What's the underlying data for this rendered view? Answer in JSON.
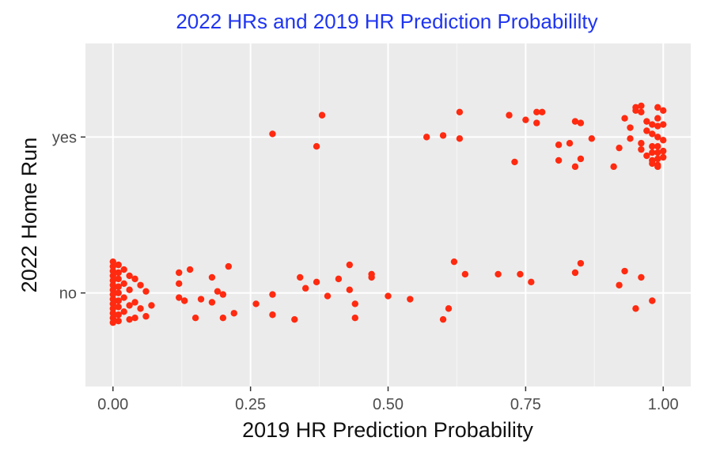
{
  "chart_data": {
    "type": "scatter",
    "title": "2022 HRs and 2019 HR Prediction Probabililty",
    "xlabel": "2019 HR Prediction Probability",
    "ylabel": "2022 Home Run",
    "xlim": [
      -0.05,
      1.05
    ],
    "x_ticks": [
      "0.00",
      "0.25",
      "0.50",
      "0.75",
      "1.00"
    ],
    "y_categories": [
      "no",
      "yes"
    ],
    "jitter": "vertical",
    "grid": true,
    "point_color": "#ff2a10",
    "panel_color": "#ebebeb",
    "title_color": "#1f35f0",
    "series": [
      {
        "category": "yes",
        "points": [
          [
            0.29,
            0.02
          ],
          [
            0.37,
            -0.06
          ],
          [
            0.38,
            0.14
          ],
          [
            0.57,
            0.0
          ],
          [
            0.6,
            0.01
          ],
          [
            0.63,
            0.16
          ],
          [
            0.63,
            -0.01
          ],
          [
            0.72,
            0.14
          ],
          [
            0.73,
            -0.16
          ],
          [
            0.75,
            0.11
          ],
          [
            0.77,
            0.16
          ],
          [
            0.77,
            0.09
          ],
          [
            0.78,
            0.16
          ],
          [
            0.81,
            -0.05
          ],
          [
            0.81,
            -0.15
          ],
          [
            0.83,
            -0.04
          ],
          [
            0.84,
            -0.19
          ],
          [
            0.84,
            0.1
          ],
          [
            0.85,
            0.09
          ],
          [
            0.85,
            -0.14
          ],
          [
            0.87,
            -0.01
          ],
          [
            0.91,
            -0.19
          ],
          [
            0.92,
            -0.07
          ],
          [
            0.93,
            0.12
          ],
          [
            0.94,
            0.06
          ],
          [
            0.94,
            -0.01
          ],
          [
            0.95,
            0.19
          ],
          [
            0.95,
            0.17
          ],
          [
            0.96,
            0.2
          ],
          [
            0.96,
            0.16
          ],
          [
            0.96,
            -0.04
          ],
          [
            0.96,
            -0.08
          ],
          [
            0.97,
            0.1
          ],
          [
            0.97,
            0.04
          ],
          [
            0.97,
            -0.12
          ],
          [
            0.98,
            0.08
          ],
          [
            0.98,
            0.02
          ],
          [
            0.98,
            -0.06
          ],
          [
            0.98,
            -0.1
          ],
          [
            0.98,
            -0.15
          ],
          [
            0.98,
            -0.17
          ],
          [
            0.99,
            0.19
          ],
          [
            0.99,
            0.12
          ],
          [
            0.99,
            0.07
          ],
          [
            0.99,
            0.0
          ],
          [
            0.99,
            -0.06
          ],
          [
            0.99,
            -0.1
          ],
          [
            0.99,
            -0.14
          ],
          [
            0.99,
            -0.18
          ],
          [
            0.99,
            -0.19
          ],
          [
            1.0,
            0.17
          ],
          [
            1.0,
            0.08
          ],
          [
            1.0,
            -0.02
          ],
          [
            1.0,
            -0.09
          ],
          [
            1.0,
            -0.13
          ]
        ]
      },
      {
        "category": "no",
        "points": [
          [
            0.0,
            0.2
          ],
          [
            0.0,
            0.17
          ],
          [
            0.0,
            0.14
          ],
          [
            0.0,
            0.11
          ],
          [
            0.0,
            0.08
          ],
          [
            0.0,
            0.05
          ],
          [
            0.0,
            0.02
          ],
          [
            0.0,
            -0.01
          ],
          [
            0.0,
            -0.04
          ],
          [
            0.0,
            -0.07
          ],
          [
            0.0,
            -0.1
          ],
          [
            0.0,
            -0.13
          ],
          [
            0.0,
            -0.16
          ],
          [
            0.0,
            -0.19
          ],
          [
            0.01,
            0.18
          ],
          [
            0.01,
            0.13
          ],
          [
            0.01,
            0.09
          ],
          [
            0.01,
            0.04
          ],
          [
            0.01,
            0.0
          ],
          [
            0.01,
            -0.05
          ],
          [
            0.01,
            -0.09
          ],
          [
            0.01,
            -0.14
          ],
          [
            0.01,
            -0.18
          ],
          [
            0.02,
            0.15
          ],
          [
            0.02,
            0.06
          ],
          [
            0.02,
            -0.03
          ],
          [
            0.02,
            -0.12
          ],
          [
            0.03,
            0.11
          ],
          [
            0.03,
            0.02
          ],
          [
            0.03,
            -0.08
          ],
          [
            0.03,
            -0.17
          ],
          [
            0.04,
            0.09
          ],
          [
            0.04,
            -0.06
          ],
          [
            0.04,
            -0.16
          ],
          [
            0.05,
            0.05
          ],
          [
            0.05,
            -0.1
          ],
          [
            0.06,
            -0.15
          ],
          [
            0.06,
            0.01
          ],
          [
            0.07,
            -0.08
          ],
          [
            0.12,
            0.13
          ],
          [
            0.12,
            0.06
          ],
          [
            0.12,
            -0.03
          ],
          [
            0.13,
            -0.05
          ],
          [
            0.14,
            0.15
          ],
          [
            0.15,
            -0.16
          ],
          [
            0.16,
            -0.04
          ],
          [
            0.18,
            0.1
          ],
          [
            0.18,
            -0.06
          ],
          [
            0.19,
            0.01
          ],
          [
            0.2,
            -0.01
          ],
          [
            0.2,
            -0.16
          ],
          [
            0.21,
            0.17
          ],
          [
            0.22,
            -0.13
          ],
          [
            0.26,
            -0.07
          ],
          [
            0.29,
            -0.01
          ],
          [
            0.29,
            -0.14
          ],
          [
            0.33,
            -0.17
          ],
          [
            0.34,
            0.1
          ],
          [
            0.35,
            0.03
          ],
          [
            0.37,
            0.07
          ],
          [
            0.39,
            -0.02
          ],
          [
            0.41,
            0.09
          ],
          [
            0.43,
            0.18
          ],
          [
            0.43,
            0.02
          ],
          [
            0.44,
            -0.07
          ],
          [
            0.44,
            -0.16
          ],
          [
            0.47,
            0.1
          ],
          [
            0.47,
            0.12
          ],
          [
            0.5,
            -0.02
          ],
          [
            0.54,
            -0.04
          ],
          [
            0.6,
            -0.17
          ],
          [
            0.61,
            -0.1
          ],
          [
            0.62,
            0.2
          ],
          [
            0.64,
            0.12
          ],
          [
            0.7,
            0.12
          ],
          [
            0.74,
            0.12
          ],
          [
            0.76,
            0.07
          ],
          [
            0.84,
            0.13
          ],
          [
            0.85,
            0.19
          ],
          [
            0.92,
            0.05
          ],
          [
            0.93,
            0.14
          ],
          [
            0.95,
            -0.1
          ],
          [
            0.96,
            0.1
          ],
          [
            0.98,
            -0.05
          ]
        ]
      }
    ]
  }
}
